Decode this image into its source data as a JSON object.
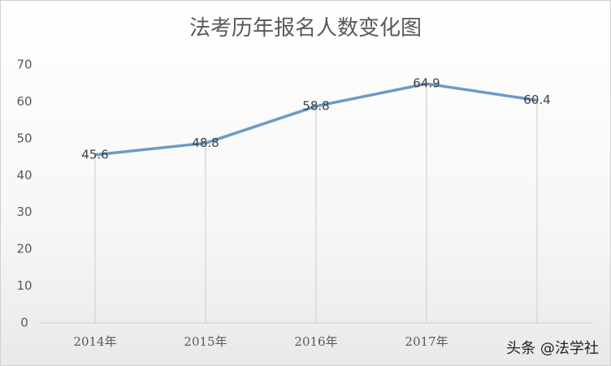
{
  "chart_data": {
    "type": "line",
    "title": "法考历年报名人数变化图",
    "categories": [
      "2014年",
      "2015年",
      "2016年",
      "2017年",
      null
    ],
    "values": [
      45.6,
      48.8,
      58.8,
      64.9,
      60.4
    ],
    "color": "#6a9bc9",
    "ylim": [
      0,
      70
    ],
    "yticks": [
      0,
      10,
      20,
      30,
      40,
      50,
      60,
      70
    ],
    "drop_lines": true,
    "watermark": "头条 @法学社"
  }
}
